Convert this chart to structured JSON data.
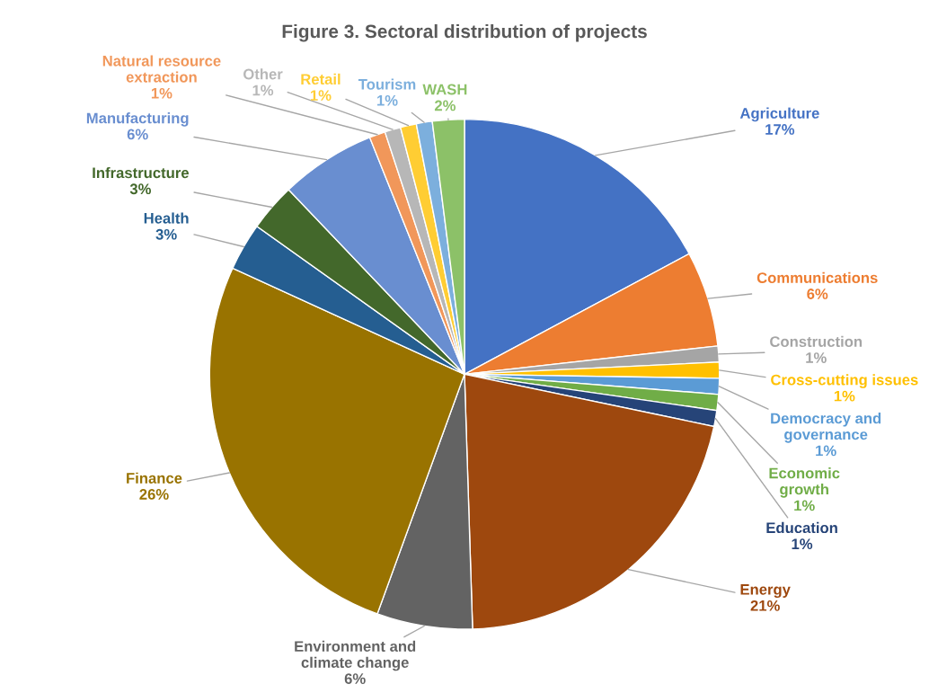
{
  "chart_data": {
    "type": "pie",
    "title": "Figure 3. Sectoral distribution of projects",
    "categories": [
      "Agriculture",
      "Communications",
      "Construction",
      "Cross-cutting issues",
      "Democracy and\ngovernance",
      "Economic\ngrowth",
      "Education",
      "Energy",
      "Environment and\nclimate change",
      "Finance",
      "Health",
      "Infrastructure",
      "Manufacturing",
      "Natural resource\nextraction",
      "Other",
      "Retail",
      "Tourism",
      "WASH"
    ],
    "values": [
      17,
      6,
      1,
      1,
      1,
      1,
      1,
      21,
      6,
      26,
      3,
      3,
      6,
      1,
      1,
      1,
      1,
      2
    ],
    "value_labels": [
      "17%",
      "6%",
      "1%",
      "1%",
      "1%",
      "1%",
      "1%",
      "21%",
      "6%",
      "26%",
      "3%",
      "3%",
      "6%",
      "1%",
      "1%",
      "1%",
      "1%",
      "2%"
    ],
    "colors": [
      "#4472c4",
      "#ed7d31",
      "#a5a5a5",
      "#ffc000",
      "#5b9bd5",
      "#70ad47",
      "#264478",
      "#9e480e",
      "#636363",
      "#997300",
      "#255e91",
      "#43682b",
      "#698ed0",
      "#f1975a",
      "#b7b7b7",
      "#ffcd33",
      "#7cafdd",
      "#8cc168"
    ]
  }
}
